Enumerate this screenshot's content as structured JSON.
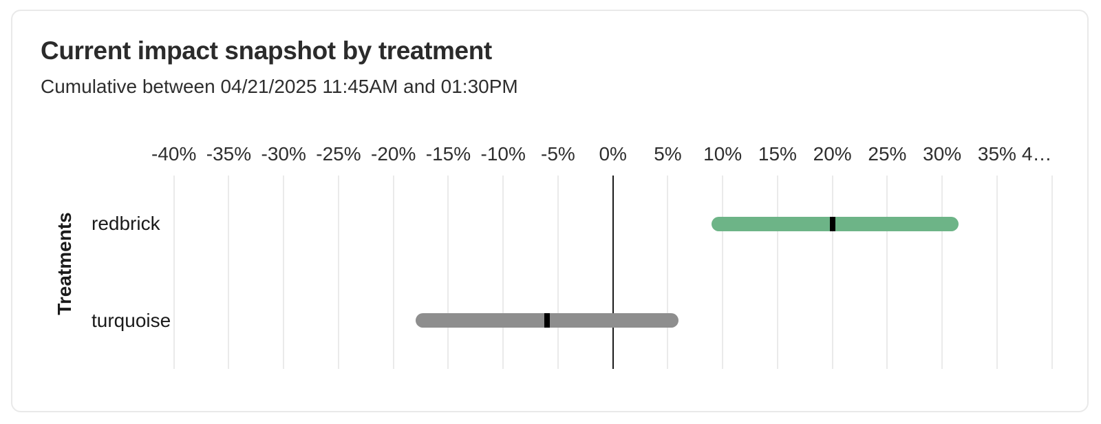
{
  "card": {
    "title": "Current impact snapshot by treatment",
    "subtitle": "Cumulative between 04/21/2025 11:45AM and 01:30PM"
  },
  "chart_data": {
    "type": "bar",
    "subtype": "horizontal-range-bars-with-midpoint-marker",
    "title": "Current impact snapshot by treatment",
    "subtitle": "Cumulative between 04/21/2025 11:45AM and 01:30PM",
    "xlabel": "",
    "ylabel": "Treatments",
    "units": "%",
    "categories": [
      "redbrick",
      "turquoise"
    ],
    "series": [
      {
        "name": "redbrick",
        "low": 9,
        "mid": 20,
        "high": 31.5,
        "color": "#6db487"
      },
      {
        "name": "turquoise",
        "low": -18,
        "mid": -6,
        "high": 6,
        "color": "#8e8e8e"
      }
    ],
    "xlim": [
      -40,
      40
    ],
    "x_tick_step": 5,
    "x_tick_labels": [
      "-40%",
      "-35%",
      "-30%",
      "-25%",
      "-20%",
      "-15%",
      "-10%",
      "-5%",
      "0%",
      "5%",
      "10%",
      "15%",
      "20%",
      "25%",
      "30%",
      "35%",
      "4…"
    ],
    "grid": true,
    "zero_line": true,
    "midpoint_marker_color": "#000000",
    "legend": "none"
  }
}
